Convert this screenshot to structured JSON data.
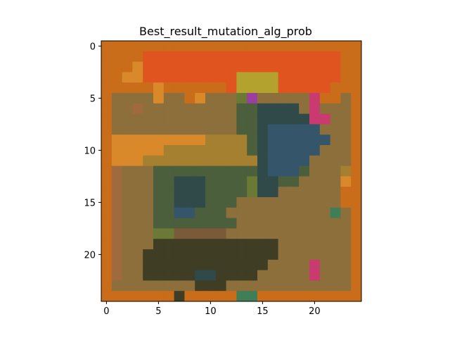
{
  "chart_data": {
    "type": "heatmap",
    "title": "Best_result_mutation_alg_prob",
    "xlabel": "",
    "ylabel": "",
    "x_ticks": [
      0,
      5,
      10,
      15,
      20
    ],
    "y_ticks": [
      0,
      5,
      10,
      15,
      20
    ],
    "xlim": [
      -0.5,
      24.5
    ],
    "ylim": [
      24.5,
      -0.5
    ],
    "grid": false,
    "palette": {
      "O": "#c96d1a",
      "R": "#e0541f",
      "A": "#d9892a",
      "Y": "#b3a32e",
      "K": "#3f3d24",
      "T": "#2f4a49",
      "B": "#34556a",
      "G": "#6a7a35",
      "L": "#4b5f3d",
      "M": "#8d6f3c",
      "P": "#c93b70",
      "V": "#9a3fa0",
      "N": "#7b5a3a",
      "S": "#9e6a3e",
      "E": "#3f7e57",
      "W": "#a58030"
    },
    "rows": [
      "OOOOOOOOOOOOOOOOOOOOOOOOO",
      "OOOORRRRRRRRRRRRRRRRRRROO",
      "OOOARRRRRRRRRRRRRRRRRRROO",
      "OOAARRRRRRRRRYYYYRRRRRROO",
      "OOOOOAOOOOOORYYYYRRRRROOO",
      "OMMMMAMMOAMMMGVMMMMMPOOMO",
      "OMMSMMMMMMMMMLLTTTTMPMMMO",
      "OMMMMMMMMMMMMLLTTTTTPPMMO",
      "OMMMMMMMMMMMMLLTBBBBBMMMO",
      "OAAAAAAAAAWWWWLTBBBBBBMMO",
      "OAAAAAWWWWWWWWLTBBBBBMMMO",
      "OAAAWWWWWWWWWWWTBBBBMMMMO",
      "OSMMMLLLLLLLLLLTBBBLMMMWO",
      "OSMMMLLTTTLLLLGTTLLMMMMAO",
      "OSMMMLLTTTLLLLGTTMMMMMMOO",
      "OSMMMLLTTTLLLMMMMMMMMMMOO",
      "OSMMMLLBBLLLMMMMMMMMMMEMO",
      "OSMMMLLLLLLLLMMMMMMMMMMMO",
      "OSMMMGGNNNNNMMMMMMMMMMMMO",
      "OSMMMKKKKKKKKKKKKMMMMMMMO",
      "OSMMKKKKKKKKKKKKKMMMMMMMO",
      "OSMMKKKKKKKKKKKKMMMMPMMMO",
      "OSMMKKKKKTTKKKKMMMMMPMMMO",
      "OMMMMMMMMKKKMMMMMMMMMMMMO",
      "OOOOOOOKOOOOOEEOOOOOOOOOO"
    ]
  }
}
